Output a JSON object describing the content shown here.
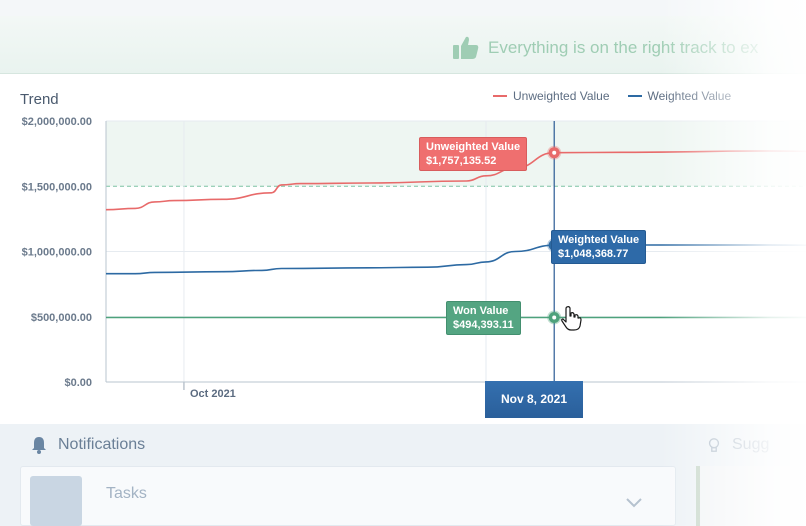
{
  "banner": {
    "message": "Everything is on the right track to ex",
    "icon": "thumbs-up-icon"
  },
  "trend": {
    "title": "Trend",
    "legend": [
      {
        "label": "Unweighted Value",
        "color": "#e86a6a"
      },
      {
        "label": "Weighted Value",
        "color": "#2d6aa3"
      }
    ]
  },
  "chart_data": {
    "type": "line",
    "title": "Trend",
    "y_ticks": [
      "$2,000,000.00",
      "$1,500,000.00",
      "$1,000,000.00",
      "$500,000.00",
      "$0.00"
    ],
    "ylim": [
      0,
      2000000
    ],
    "x_ticks": [
      "Oct 2021",
      "Nov"
    ],
    "target_line": 1500000,
    "series": [
      {
        "name": "Unweighted Value",
        "color": "#e86a6a",
        "x": [
          "2021-09-23",
          "2021-09-26",
          "2021-09-28",
          "2021-09-30",
          "2021-10-05",
          "2021-10-10",
          "2021-10-11",
          "2021-10-13",
          "2021-10-20",
          "2021-10-30",
          "2021-11-01",
          "2021-11-04",
          "2021-11-08",
          "2021-11-15",
          "2021-11-30",
          "2021-12-10"
        ],
        "values": [
          1320000,
          1330000,
          1380000,
          1390000,
          1400000,
          1450000,
          1510000,
          1520000,
          1525000,
          1540000,
          1580000,
          1640000,
          1757135.52,
          1760000,
          1770000,
          1760000
        ]
      },
      {
        "name": "Weighted Value",
        "color": "#2d6aa3",
        "x": [
          "2021-09-23",
          "2021-09-26",
          "2021-09-28",
          "2021-10-05",
          "2021-10-09",
          "2021-10-11",
          "2021-10-20",
          "2021-10-26",
          "2021-10-30",
          "2021-11-01",
          "2021-11-04",
          "2021-11-08",
          "2021-11-15",
          "2021-11-30",
          "2021-12-10"
        ],
        "values": [
          830000,
          830000,
          840000,
          845000,
          855000,
          870000,
          875000,
          880000,
          900000,
          920000,
          1000000,
          1048368.77,
          1050000,
          1050000,
          1045000
        ]
      },
      {
        "name": "Won Value",
        "color": "#4ea27c",
        "x": [
          "2021-09-23",
          "2021-12-10"
        ],
        "values": [
          494393.11,
          494393.11
        ]
      }
    ],
    "hover": {
      "date": "Nov 8, 2021",
      "unweighted_label": "Unweighted Value",
      "unweighted_value": "$1,757,135.52",
      "weighted_label": "Weighted Value",
      "weighted_value": "$1,048,368.77",
      "won_label": "Won Value",
      "won_value": "$494,393.11"
    }
  },
  "notifications": {
    "title": "Notifications",
    "icon": "bell-icon",
    "task_label": "Tasks"
  },
  "suggestions": {
    "title": "Sugg",
    "icon": "lightbulb-icon"
  }
}
